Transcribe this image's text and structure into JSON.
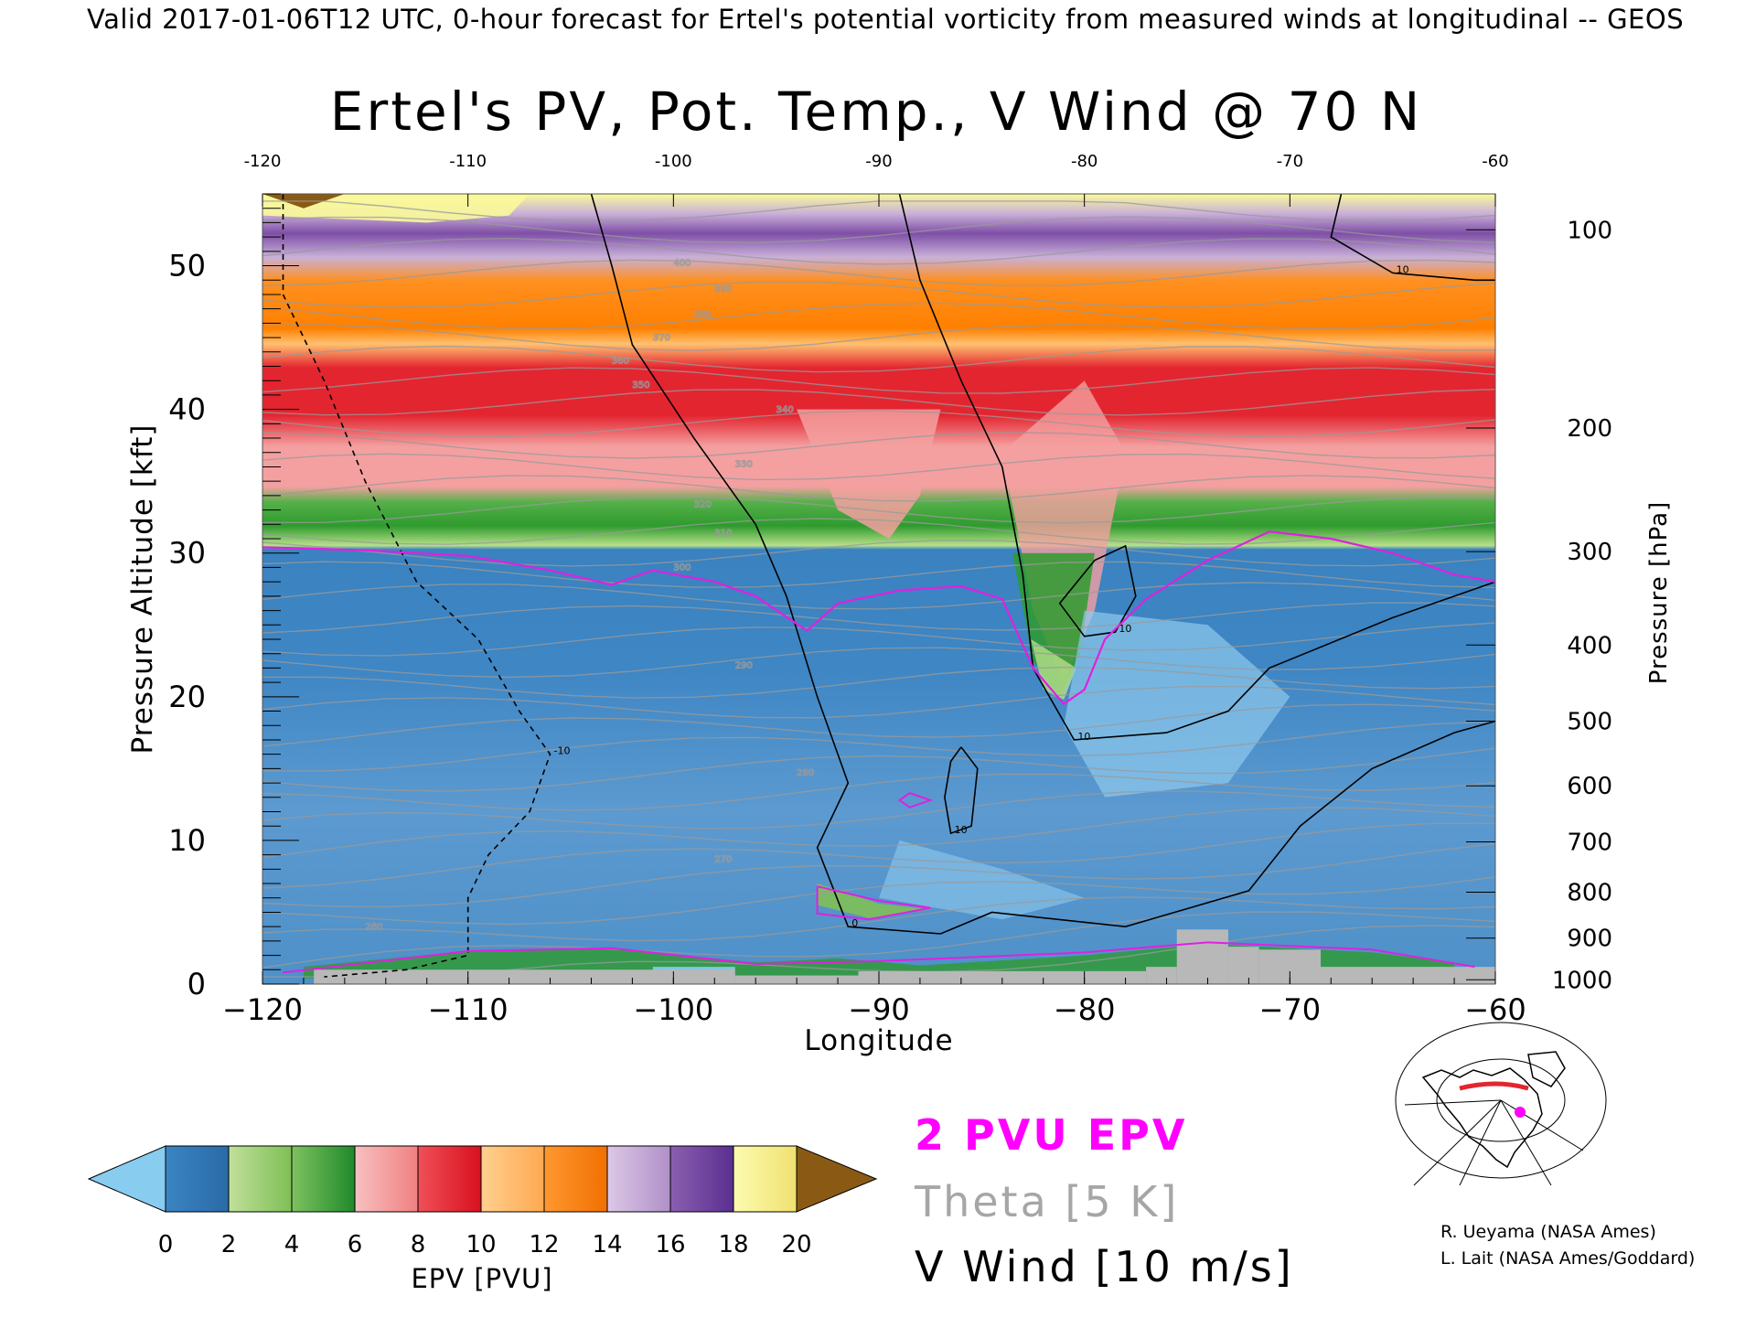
{
  "header": "Valid 2017-01-06T12 UTC, 0-hour forecast for Ertel's potential vorticity from measured winds at longitudinal -- GEOS",
  "chart_data": {
    "type": "heatmap",
    "title": "Ertel's PV, Pot. Temp., V Wind @ 70 N",
    "xlabel": "Longitude",
    "ylabel": "Pressure Altitude [kft]",
    "y2label": "Pressure [hPa]",
    "xlim": [
      -120,
      -60
    ],
    "ylim": [
      0,
      55
    ],
    "x_ticks": [
      -120,
      -110,
      -100,
      -90,
      -80,
      -70,
      -60
    ],
    "x_tick_labels": [
      "−120",
      "−110",
      "−100",
      "−90",
      "−80",
      "−70",
      "−60"
    ],
    "top_tick_labels": [
      "-120",
      "-110",
      "-100",
      "-90",
      "-80",
      "-70",
      "-60"
    ],
    "y_ticks": [
      0,
      10,
      20,
      30,
      40,
      50
    ],
    "y_tick_labels": [
      "0",
      "10",
      "20",
      "30",
      "40",
      "50"
    ],
    "pressure_ticks": [
      {
        "hpa": 100,
        "kft": 52.5,
        "label": "100"
      },
      {
        "hpa": 200,
        "kft": 38.7,
        "label": "200"
      },
      {
        "hpa": 300,
        "kft": 30.1,
        "label": "300"
      },
      {
        "hpa": 400,
        "kft": 23.6,
        "label": "400"
      },
      {
        "hpa": 500,
        "kft": 18.3,
        "label": "500"
      },
      {
        "hpa": 600,
        "kft": 13.8,
        "label": "600"
      },
      {
        "hpa": 700,
        "kft": 9.9,
        "label": "700"
      },
      {
        "hpa": 800,
        "kft": 6.4,
        "label": "800"
      },
      {
        "hpa": 900,
        "kft": 3.2,
        "label": "900"
      },
      {
        "hpa": 1000,
        "kft": 0.3,
        "label": "1000"
      }
    ],
    "tropopause_2pvu_kft": [
      [
        -120,
        30.4
      ],
      [
        -115,
        30.2
      ],
      [
        -110,
        29.8
      ],
      [
        -106,
        28.8
      ],
      [
        -103,
        27.8
      ],
      [
        -101,
        28.8
      ],
      [
        -98,
        28.0
      ],
      [
        -96,
        27.0
      ],
      [
        -93.5,
        24.6
      ],
      [
        -92,
        26.5
      ],
      [
        -89,
        27.4
      ],
      [
        -86,
        27.7
      ],
      [
        -84,
        26.8
      ],
      [
        -82.5,
        22.0
      ],
      [
        -81,
        19.5
      ],
      [
        -80,
        20.5
      ],
      [
        -79,
        24.0
      ],
      [
        -77,
        26.8
      ],
      [
        -74,
        29.5
      ],
      [
        -71,
        31.5
      ],
      [
        -68,
        31.0
      ],
      [
        -65,
        30.0
      ],
      [
        -62,
        28.5
      ],
      [
        -60,
        28.0
      ]
    ],
    "v_wind_contours": [
      {
        "label": "0",
        "dashed": false,
        "points": [
          [
            -104,
            55
          ],
          [
            -103,
            50
          ],
          [
            -102,
            44.5
          ],
          [
            -99,
            38
          ],
          [
            -96,
            32
          ],
          [
            -94.5,
            27
          ],
          [
            -93,
            20
          ],
          [
            -91.5,
            14
          ],
          [
            -93,
            9.5
          ],
          [
            -91.5,
            4
          ],
          [
            -87,
            3.5
          ],
          [
            -84.5,
            5
          ],
          [
            -78,
            4
          ],
          [
            -72,
            6.5
          ],
          [
            -69.5,
            11
          ],
          [
            -66,
            15
          ],
          [
            -62,
            17.5
          ],
          [
            -60,
            18.3
          ]
        ]
      },
      {
        "label": "10",
        "dashed": false,
        "points": [
          [
            -89,
            55
          ],
          [
            -88,
            49
          ],
          [
            -86,
            42
          ],
          [
            -84,
            36
          ],
          [
            -83,
            28.5
          ],
          [
            -82.5,
            22
          ],
          [
            -80.5,
            17
          ],
          [
            -76,
            17.5
          ],
          [
            -73,
            19
          ],
          [
            -71,
            22
          ],
          [
            -65,
            25.5
          ],
          [
            -60,
            28
          ]
        ]
      },
      {
        "label": "10",
        "dashed": false,
        "points": [
          [
            -67.5,
            55
          ],
          [
            -68,
            52
          ],
          [
            -65,
            49.5
          ],
          [
            -61,
            49
          ],
          [
            -60,
            49
          ]
        ]
      },
      {
        "label": "-10",
        "dashed": true,
        "points": [
          [
            -119,
            55
          ],
          [
            -119,
            48
          ],
          [
            -117,
            42
          ],
          [
            -115,
            35
          ],
          [
            -112.5,
            28
          ],
          [
            -109.5,
            24
          ],
          [
            -107.5,
            19
          ],
          [
            -106,
            16
          ],
          [
            -107,
            12
          ],
          [
            -109,
            9
          ],
          [
            -110,
            6
          ],
          [
            -110,
            2
          ],
          [
            -113,
            1
          ],
          [
            -117,
            0.5
          ]
        ]
      },
      {
        "label": "10",
        "dashed": false,
        "points": [
          [
            -79.5,
            29.5
          ],
          [
            -78,
            30.5
          ],
          [
            -77.5,
            27
          ],
          [
            -78.5,
            24.5
          ],
          [
            -80,
            24.2
          ],
          [
            -81.2,
            26.5
          ],
          [
            -79.5,
            29.5
          ]
        ]
      },
      {
        "label": "10",
        "dashed": false,
        "points": [
          [
            -86,
            16.5
          ],
          [
            -85.2,
            15
          ],
          [
            -85.5,
            11
          ],
          [
            -86.5,
            10.5
          ],
          [
            -86.8,
            13
          ],
          [
            -86.5,
            15.5
          ],
          [
            -86,
            16.5
          ]
        ]
      }
    ],
    "theta_labels": [
      {
        "label": "260"
      },
      {
        "label": "270"
      },
      {
        "label": "280"
      },
      {
        "label": "290"
      },
      {
        "label": "300"
      },
      {
        "label": "310"
      },
      {
        "label": "320"
      },
      {
        "label": "330"
      },
      {
        "label": "340"
      },
      {
        "label": "350"
      },
      {
        "label": "360"
      },
      {
        "label": "370"
      },
      {
        "label": "380"
      },
      {
        "label": "390"
      },
      {
        "label": "400"
      }
    ],
    "terrain_kft": [
      {
        "x0": -117.5,
        "x1": -97,
        "h": 1
      },
      {
        "x0": -97,
        "x1": -91,
        "h": 0.6
      },
      {
        "x0": -91,
        "x1": -77,
        "h": 0.9
      },
      {
        "x0": -77,
        "x1": -75.5,
        "h": 1.2
      },
      {
        "x0": -75.5,
        "x1": -73,
        "h": 3.8
      },
      {
        "x0": -73,
        "x1": -71.5,
        "h": 2.6
      },
      {
        "x0": -71.5,
        "x1": -68.5,
        "h": 2.4
      },
      {
        "x0": -68.5,
        "x1": -60,
        "h": 1.2
      }
    ]
  },
  "colorbar": {
    "label": "EPV [PVU]",
    "ticks": [
      "0",
      "2",
      "4",
      "6",
      "8",
      "10",
      "12",
      "14",
      "16",
      "18",
      "20"
    ],
    "colors": [
      "#2e7ab8",
      "#7fbf56",
      "#2e9b2e",
      "#f4a0a0",
      "#e32530",
      "#ffc070",
      "#ff8000",
      "#c9b0d8",
      "#7e4fa6",
      "#fafa9a"
    ],
    "below_color": "#88ccf0",
    "above_color": "#8a5a15"
  },
  "legend": {
    "epv": "2 PVU EPV",
    "theta": "Theta [5 K]",
    "wind": "V Wind [10 m/s]"
  },
  "credits": [
    "R. Ueyama (NASA Ames)",
    "L. Lait (NASA Ames/Goddard)"
  ]
}
